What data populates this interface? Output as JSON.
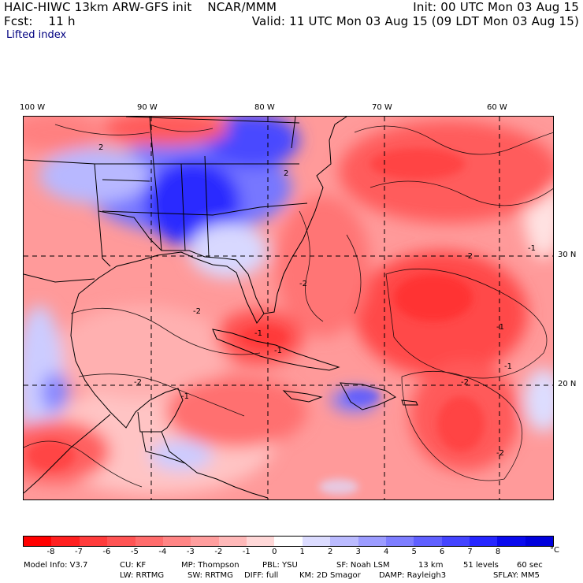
{
  "header": {
    "line1_left": "HAIC-HIWC 13km ARW-GFS init    NCAR/MMM",
    "line1_right": "Init: 00 UTC Mon 03 Aug 15",
    "line2_left": "Fcst:    11 h",
    "line2_right": "Valid: 11 UTC Mon 03 Aug 15 (09 LDT Mon 03 Aug 15)",
    "field_name": "Lifted index"
  },
  "map": {
    "lon_labels": [
      "100 W",
      "90 W",
      "80 W",
      "70 W",
      "60 W"
    ],
    "lon_values": [
      -100,
      -90,
      -80,
      -70,
      -60
    ],
    "lat_labels": [
      "30 N",
      "20 N"
    ],
    "lat_values": [
      30,
      20
    ],
    "extent": {
      "lon_min": -100.3,
      "lon_max": -55.5,
      "lat_min": 11.0,
      "lat_max": 40.9
    },
    "contour_labels": [
      "2",
      "-1",
      "2",
      "-2",
      "-2",
      "-2",
      "-1",
      "-2",
      "-2",
      "-2",
      "-1",
      "-1",
      "-1",
      "-1"
    ]
  },
  "colorbar": {
    "labels": [
      "-8",
      "-7",
      "-6",
      "-5",
      "-4",
      "-3",
      "-2",
      "-1",
      "0",
      "1",
      "2",
      "3",
      "4",
      "5",
      "6",
      "7",
      "8"
    ],
    "unit": "°C",
    "colors": [
      "#ff0000",
      "#ff2020",
      "#ff3c3c",
      "#ff5454",
      "#ff6c6c",
      "#ff8585",
      "#ff9e9e",
      "#ffb9b9",
      "#ffd8d8",
      "#ffffff",
      "#dcdcff",
      "#bbbbff",
      "#9c9cff",
      "#7e7eff",
      "#6060ff",
      "#4444ff",
      "#2626ff",
      "#0a0aee",
      "#0000dd"
    ]
  },
  "model_info": {
    "row1": [
      "Model Info: V3.7",
      "CU: KF",
      "MP: Thompson",
      "PBL: YSU",
      "SF: Noah LSM",
      "13 km",
      "51 levels",
      "60 sec"
    ],
    "row2": [
      "LW: RRTMG",
      "SW: RRTMG",
      "DIFF: full",
      "KM: 2D Smagor",
      "DAMP: Rayleigh3",
      "SFLAY: MM5"
    ]
  }
}
